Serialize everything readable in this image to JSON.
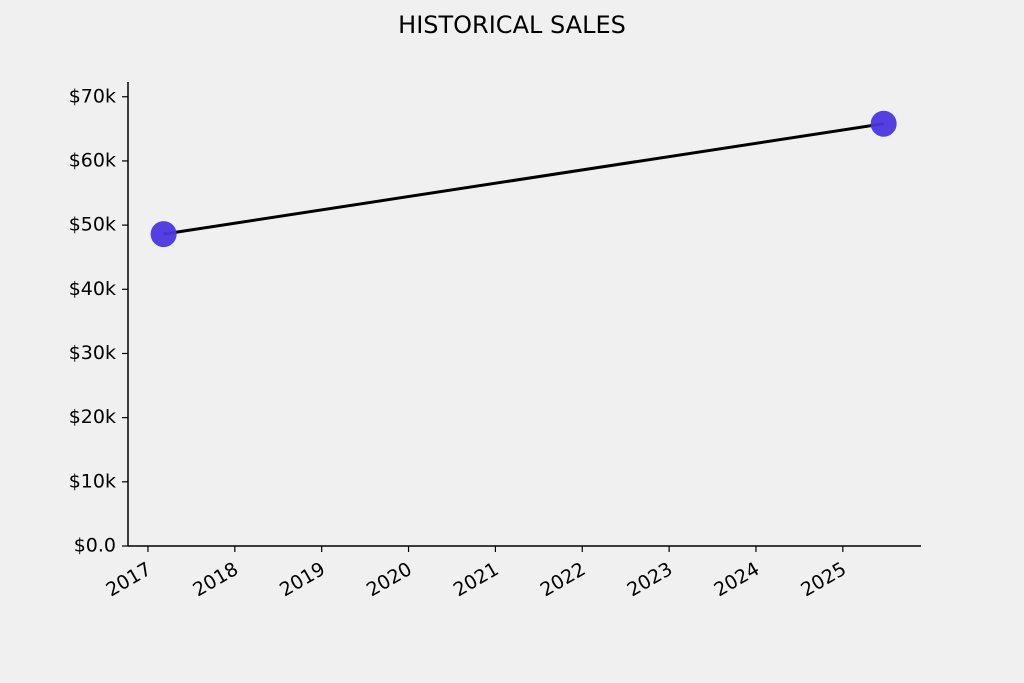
{
  "chart_data": {
    "type": "line",
    "title": "HISTORICAL SALES",
    "x": [
      2017.18,
      2025.47
    ],
    "series": [
      {
        "name": "Sales",
        "line_color": "#000000",
        "color": "#4a35e0",
        "values": [
          48600,
          65800
        ]
      }
    ],
    "xlim": [
      2016.77,
      2025.9
    ],
    "xticks": [
      2017,
      2018,
      2019,
      2020,
      2021,
      2022,
      2023,
      2024,
      2025
    ],
    "ylim": [
      0,
      72300
    ],
    "yticks": [
      {
        "value": 0,
        "label": "$0.0"
      },
      {
        "value": 10000,
        "label": "$10k"
      },
      {
        "value": 20000,
        "label": "$20k"
      },
      {
        "value": 30000,
        "label": "$30k"
      },
      {
        "value": 40000,
        "label": "$40k"
      },
      {
        "value": 50000,
        "label": "$50k"
      },
      {
        "value": 60000,
        "label": "$60k"
      },
      {
        "value": 70000,
        "label": "$70k"
      }
    ],
    "grid": false
  }
}
